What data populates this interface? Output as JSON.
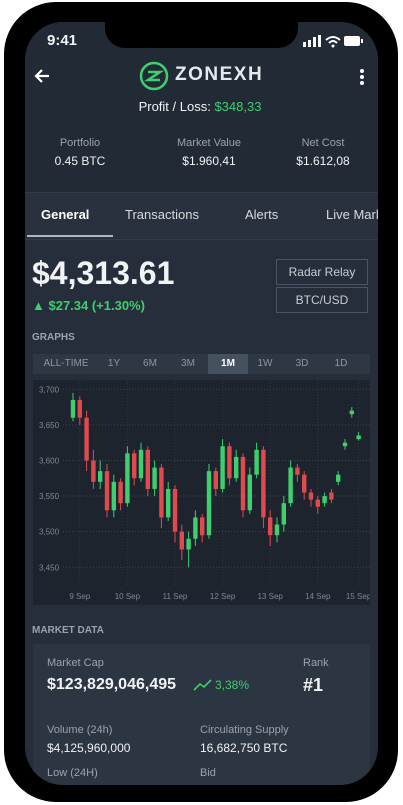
{
  "status": {
    "time": "9:41"
  },
  "header": {
    "brand": "ZONEXH",
    "profit_label": "Profit / Loss:",
    "profit_value": "$348,33"
  },
  "stats": [
    {
      "label": "Portfolio",
      "value": "0.45 BTC"
    },
    {
      "label": "Market Value",
      "value": "$1.960,41"
    },
    {
      "label": "Net Cost",
      "value": "$1.612,08"
    }
  ],
  "tabs": [
    "General",
    "Transactions",
    "Alerts",
    "Live Market"
  ],
  "price": {
    "value": "$4,313.61",
    "change": "$27.34 (+1.30%)"
  },
  "buttons": [
    "Radar Relay",
    "BTC/USD"
  ],
  "graphs": {
    "title": "GRAPHS",
    "ranges": [
      "ALL-TIME",
      "1Y",
      "6M",
      "3M",
      "1M",
      "1W",
      "3D",
      "1D"
    ],
    "active": "1M"
  },
  "chart_data": {
    "type": "candlestick",
    "grid": true,
    "up_color": "#3ecf6e",
    "down_color": "#e04a4f",
    "categories": [
      null,
      "9 Sep",
      null,
      null,
      null,
      null,
      null,
      null,
      "10 Sep",
      null,
      null,
      null,
      null,
      null,
      null,
      "11 Sep",
      null,
      null,
      null,
      null,
      null,
      null,
      "12 Sep",
      null,
      null,
      null,
      null,
      null,
      null,
      "13 Sep",
      null,
      null,
      null,
      null,
      null,
      null,
      "14 Sep",
      null,
      null,
      null,
      null,
      null,
      "15 Sep"
    ],
    "open": [
      3660,
      3685,
      3660,
      3600,
      3570,
      3585,
      3530,
      3570,
      3540,
      3610,
      3575,
      3615,
      3560,
      3590,
      3520,
      3560,
      3500,
      3475,
      3490,
      3520,
      3495,
      3585,
      3560,
      3620,
      3575,
      3605,
      3530,
      3580,
      3615,
      3520,
      3495,
      3510,
      3540,
      3590,
      3580,
      3555,
      3545,
      3540,
      3555,
      3570,
      3620,
      3665,
      3630
    ],
    "high": [
      3695,
      3690,
      3670,
      3615,
      3600,
      3595,
      3580,
      3575,
      3620,
      3615,
      3625,
      3620,
      3600,
      3595,
      3570,
      3565,
      3510,
      3500,
      3530,
      3525,
      3595,
      3590,
      3630,
      3625,
      3615,
      3610,
      3590,
      3625,
      3620,
      3530,
      3520,
      3550,
      3600,
      3595,
      3585,
      3560,
      3550,
      3555,
      3560,
      3585,
      3630,
      3675,
      3640
    ],
    "low": [
      3655,
      3650,
      3585,
      3560,
      3560,
      3520,
      3520,
      3530,
      3535,
      3565,
      3570,
      3550,
      3550,
      3505,
      3515,
      3485,
      3460,
      3450,
      3480,
      3485,
      3490,
      3550,
      3555,
      3565,
      3570,
      3520,
      3525,
      3575,
      3505,
      3480,
      3485,
      3500,
      3535,
      3570,
      3545,
      3535,
      3525,
      3535,
      3540,
      3565,
      3615,
      3660,
      3628
    ],
    "close": [
      3685,
      3660,
      3600,
      3570,
      3585,
      3530,
      3570,
      3540,
      3610,
      3575,
      3615,
      3560,
      3590,
      3520,
      3560,
      3500,
      3475,
      3490,
      3520,
      3495,
      3585,
      3560,
      3620,
      3575,
      3605,
      3530,
      3580,
      3615,
      3520,
      3495,
      3510,
      3540,
      3590,
      3580,
      3555,
      3545,
      3535,
      3550,
      3545,
      3580,
      3625,
      3670,
      3635
    ],
    "ylim": [
      3397,
      3713
    ],
    "yticks": [
      {
        "value": 3450,
        "label": "3,450"
      },
      {
        "value": 3500,
        "label": "3,500"
      },
      {
        "value": 3550,
        "label": "3,550"
      },
      {
        "value": 3600,
        "label": "3,600"
      },
      {
        "value": 3650,
        "label": "3,650"
      },
      {
        "value": 3700,
        "label": "3,700"
      }
    ]
  },
  "market": {
    "title": "MARKET DATA",
    "cap_label": "Market Cap",
    "cap_value": "$123,829,046,495",
    "cap_change": "3,38%",
    "rank_label": "Rank",
    "rank_value": "#1",
    "volume_label": "Volume (24h)",
    "volume_value": "$4,125,960,000",
    "supply_label": "Circulating Supply",
    "supply_value": "16,682,750 BTC",
    "low_label": "Low (24H)",
    "bid_label": "Bid"
  }
}
